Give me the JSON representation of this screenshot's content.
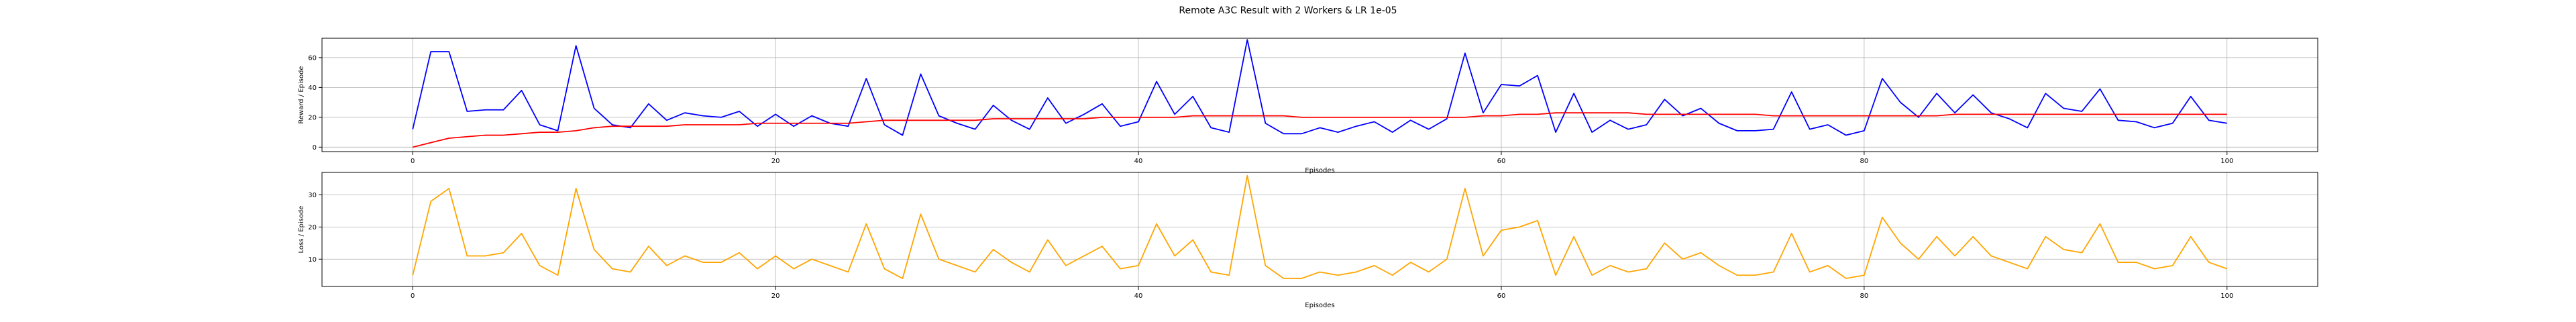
{
  "figure": {
    "title": "Remote A3C Result with 2 Workers & LR 1e-05"
  },
  "colors": {
    "reward": "#0000ff",
    "average": "#ff0000",
    "loss": "#ffa500",
    "grid": "#b0b0b0"
  },
  "chart_data": [
    {
      "type": "line",
      "xlabel": "Episodes",
      "ylabel": "Reward / Episode",
      "xlim": [
        -5,
        105
      ],
      "ylim": [
        -3,
        73
      ],
      "xticks": [
        0,
        20,
        40,
        60,
        80,
        100
      ],
      "yticks": [
        0,
        20,
        40,
        60
      ],
      "grid": true,
      "series": [
        {
          "color": "#0000ff",
          "values": [
            12,
            64,
            64,
            24,
            25,
            25,
            38,
            15,
            11,
            68,
            26,
            15,
            13,
            29,
            18,
            23,
            21,
            20,
            24,
            14,
            22,
            14,
            21,
            16,
            14,
            46,
            15,
            8,
            49,
            21,
            16,
            12,
            28,
            18,
            12,
            33,
            16,
            22,
            29,
            14,
            17,
            44,
            22,
            34,
            13,
            10,
            72,
            16,
            9,
            9,
            13,
            10,
            14,
            17,
            10,
            18,
            12,
            19,
            63,
            23,
            42,
            41,
            48,
            10,
            36,
            10,
            18,
            12,
            15,
            32,
            21,
            26,
            16,
            11,
            11,
            12,
            37,
            12,
            15,
            8,
            11,
            46,
            30,
            20,
            36,
            23,
            35,
            23,
            19,
            13,
            36,
            26,
            24,
            39,
            18,
            17,
            13,
            16,
            34,
            18,
            16
          ]
        },
        {
          "color": "#ff0000",
          "values": [
            0,
            3,
            6,
            7,
            8,
            8,
            9,
            10,
            10,
            11,
            13,
            14,
            14,
            14,
            14,
            15,
            15,
            15,
            15,
            16,
            16,
            16,
            16,
            16,
            16,
            17,
            18,
            18,
            18,
            18,
            18,
            18,
            19,
            19,
            19,
            19,
            19,
            19,
            20,
            20,
            20,
            20,
            20,
            21,
            21,
            21,
            21,
            21,
            21,
            20,
            20,
            20,
            20,
            20,
            20,
            20,
            20,
            20,
            20,
            21,
            21,
            22,
            22,
            23,
            23,
            23,
            23,
            23,
            22,
            22,
            22,
            22,
            22,
            22,
            22,
            21,
            21,
            21,
            21,
            21,
            21,
            21,
            21,
            21,
            21,
            22,
            22,
            22,
            22,
            22,
            22,
            22,
            22,
            22,
            22,
            22,
            22,
            22,
            22,
            22,
            22
          ]
        }
      ]
    },
    {
      "type": "line",
      "xlabel": "Episodes",
      "ylabel": "Loss / Episode",
      "xlim": [
        -5,
        105
      ],
      "ylim": [
        1.5,
        37
      ],
      "xticks": [
        0,
        20,
        40,
        60,
        80,
        100
      ],
      "yticks": [
        10,
        20,
        30
      ],
      "grid": true,
      "series": [
        {
          "color": "#ffa500",
          "values": [
            5,
            28,
            32,
            11,
            11,
            12,
            18,
            8,
            5,
            32,
            13,
            7,
            6,
            14,
            8,
            11,
            9,
            9,
            12,
            7,
            11,
            7,
            10,
            8,
            6,
            21,
            7,
            4,
            24,
            10,
            8,
            6,
            13,
            9,
            6,
            16,
            8,
            11,
            14,
            7,
            8,
            21,
            11,
            16,
            6,
            5,
            36,
            8,
            4,
            4,
            6,
            5,
            6,
            8,
            5,
            9,
            6,
            10,
            32,
            11,
            19,
            20,
            22,
            5,
            17,
            5,
            8,
            6,
            7,
            15,
            10,
            12,
            8,
            5,
            5,
            6,
            18,
            6,
            8,
            4,
            5,
            23,
            15,
            10,
            17,
            11,
            17,
            11,
            9,
            7,
            17,
            13,
            12,
            21,
            9,
            9,
            7,
            8,
            17,
            9,
            7
          ]
        }
      ]
    }
  ]
}
